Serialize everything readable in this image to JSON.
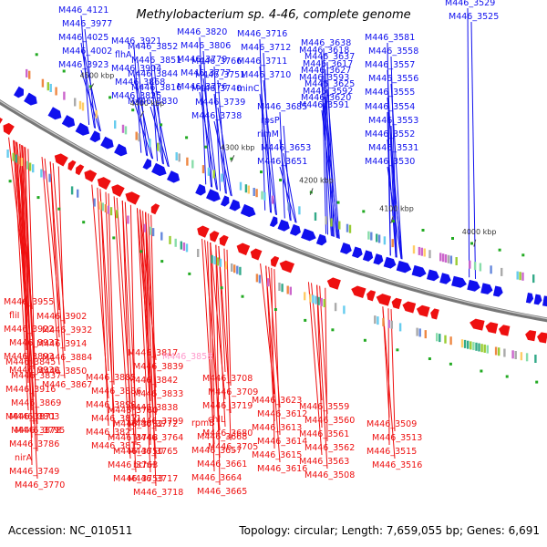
{
  "title": "Methylobacterium sp. 4-46, complete genome",
  "accession": "Accession: NC_010511",
  "summary": "Topology: circular; Length: 7,659,055 bp; Genes: 6,691",
  "colors": {
    "forward": "#1010ee",
    "reverse": "#ee1010",
    "backbone": "#777777",
    "highlight": "#ff99cc"
  },
  "kbp_ticks": [
    "4500 kbp",
    "4400 kbp",
    "4300 kbp",
    "4200 kbp",
    "4100 kbp",
    "4000 kbp"
  ],
  "blue_labels": [
    "M446_4121",
    "M446_3977",
    "M446_4025",
    "M446_4002",
    "M446_3923",
    "M446_3921",
    "flhA",
    "M446_3904",
    "M446_3868",
    "M446_3825",
    "M446_3852",
    "M446_3851",
    "M446_3844",
    "M446_3816",
    "M446_3830",
    "M446_3820",
    "M446_3806",
    "M446_3779",
    "M446_3777",
    "M446_3776",
    "M446_3766",
    "M446_3751",
    "M446_3740",
    "M446_3739",
    "M446_3738",
    "M446_3716",
    "M446_3712",
    "M446_3711",
    "M446_3710",
    "minC",
    "M446_3685",
    "rpsP",
    "rimM",
    "M446_3653",
    "M446_3651",
    "M446_3638",
    "M446_3637",
    "M446_3627",
    "M446_3625",
    "M446_3620",
    "M446_3618",
    "M446_3617",
    "M446_3593",
    "M446_3592",
    "M446_3591",
    "M446_3581",
    "M446_3558",
    "M446_3557",
    "M446_3556",
    "M446_3555",
    "M446_3554",
    "M446_3553",
    "M446_3552",
    "M446_3531",
    "M446_3530",
    "M446_3529",
    "M446_3525"
  ],
  "red_labels": [
    "M446_3955",
    "fliI",
    "M446_3922",
    "M446_3937",
    "M446_3893",
    "M446_3930",
    "M446_3902",
    "M446_3932",
    "M446_3914",
    "M446_3884",
    "M446_3850",
    "M446_3867",
    "M446_3845",
    "M446_3837",
    "M446_3916",
    "M446_3869",
    "M446_3871",
    "M446_3878",
    "M446_3885",
    "M446_3886",
    "M446_3890",
    "M446_3811",
    "M446_3821",
    "M446_3815",
    "M446_3817",
    "M446_3839",
    "M446_3842",
    "M446_3833",
    "M446_3838",
    "M446_3799",
    "M446_3803",
    "M446_3795",
    "M446_3786",
    "nirA",
    "M446_3749",
    "M446_3770",
    "M446_3760",
    "M446_3762",
    "M446_3748",
    "M446_3750",
    "M446_3763",
    "M446_3753",
    "M446_3772",
    "M446_3764",
    "M446_3765",
    "bchH",
    "M446_3717",
    "M446_3718",
    "M446_3708",
    "M446_3709",
    "M446_3719",
    "chlL",
    "M446_3680",
    "M446_3705",
    "rpmB",
    "M446_3668",
    "M446_3657",
    "M446_3661",
    "M446_3664",
    "M446_3665",
    "M446_3623",
    "M446_3612",
    "M446_3613",
    "M446_3614",
    "M446_3615",
    "M446_3616",
    "M446_3559",
    "M446_3560",
    "M446_3561",
    "M446_3562",
    "M446_3563",
    "M446_3508",
    "M446_3509",
    "M446_3513",
    "M446_3515",
    "M446_3516"
  ],
  "highlight_label": "M446_3858"
}
